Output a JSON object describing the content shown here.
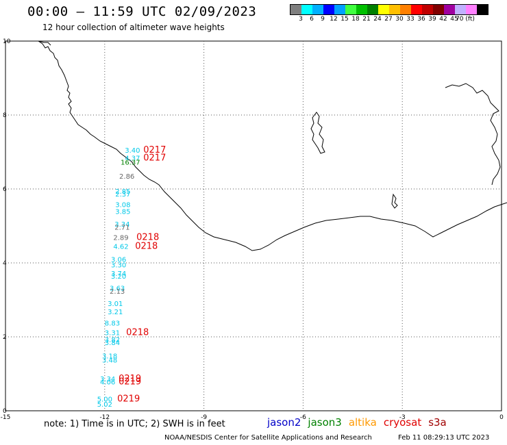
{
  "header": {
    "title": "00:00 – 11:59 UTC 02/09/2023",
    "subtitle": "12 hour collection of altimeter wave heights"
  },
  "colorbar": {
    "colors": [
      "#7f7f7f",
      "#00ffff",
      "#00b0ff",
      "#0000ff",
      "#00a0ff",
      "#40ff40",
      "#00c000",
      "#008000",
      "#ffff00",
      "#ffbf00",
      "#ff8000",
      "#ff0000",
      "#c00000",
      "#800000",
      "#a000a0",
      "#c0b0ff",
      "#ff80ff",
      "#000000"
    ],
    "labels": [
      "3",
      "6",
      "9",
      "12",
      "15",
      "18",
      "21",
      "24",
      "27",
      "30",
      "33",
      "36",
      "39",
      "42",
      "45",
      "70 (ft)"
    ]
  },
  "axes": {
    "x_ticks": [
      "-15",
      "-12",
      "-9",
      "-6",
      "-3",
      "0"
    ],
    "y_ticks": [
      "10",
      "8",
      "6",
      "4",
      "2",
      "0"
    ]
  },
  "observations": [
    {
      "text": "3.40",
      "color": "#00c8e8",
      "lon": -11.39,
      "lat": 6.98
    },
    {
      "text": "4.37",
      "color": "#00c8e8",
      "lon": -11.39,
      "lat": 6.77
    },
    {
      "text": "16.37",
      "color": "#008000",
      "lon": -11.52,
      "lat": 6.66
    },
    {
      "text": "2.86",
      "color": "#666666",
      "lon": -11.56,
      "lat": 6.28
    },
    {
      "text": "2.85",
      "color": "#00c8e8",
      "lon": -11.68,
      "lat": 5.87
    },
    {
      "text": "2.37",
      "color": "#00c8e8",
      "lon": -11.68,
      "lat": 5.8
    },
    {
      "text": "3.08",
      "color": "#00c8e8",
      "lon": -11.68,
      "lat": 5.51
    },
    {
      "text": "3.85",
      "color": "#00c8e8",
      "lon": -11.68,
      "lat": 5.32
    },
    {
      "text": "3.34",
      "color": "#00c8e8",
      "lon": -11.7,
      "lat": 4.98
    },
    {
      "text": "2.71",
      "color": "#666666",
      "lon": -11.7,
      "lat": 4.9
    },
    {
      "text": "2.89",
      "color": "#666666",
      "lon": -11.74,
      "lat": 4.62
    },
    {
      "text": "4.62",
      "color": "#00c8e8",
      "lon": -11.74,
      "lat": 4.38
    },
    {
      "text": "3.06",
      "color": "#00c8e8",
      "lon": -11.81,
      "lat": 4.03
    },
    {
      "text": "3.30",
      "color": "#00c8e8",
      "lon": -11.81,
      "lat": 3.88
    },
    {
      "text": "3.74",
      "color": "#00c8e8",
      "lon": -11.81,
      "lat": 3.65
    },
    {
      "text": "3.20",
      "color": "#00c8e8",
      "lon": -11.81,
      "lat": 3.57
    },
    {
      "text": "3.63",
      "color": "#00c8e8",
      "lon": -11.85,
      "lat": 3.25
    },
    {
      "text": "2.13",
      "color": "#666666",
      "lon": -11.85,
      "lat": 3.17
    },
    {
      "text": "3.01",
      "color": "#00c8e8",
      "lon": -11.91,
      "lat": 2.83
    },
    {
      "text": "3.21",
      "color": "#00c8e8",
      "lon": -11.91,
      "lat": 2.61
    },
    {
      "text": "8.83",
      "color": "#00c8e8",
      "lon": -12.0,
      "lat": 2.31
    },
    {
      "text": "3.31",
      "color": "#00c8e8",
      "lon": -12.0,
      "lat": 2.05
    },
    {
      "text": "3.82",
      "color": "#00c8e8",
      "lon": -12.0,
      "lat": 1.86
    },
    {
      "text": "3.84",
      "color": "#00c8e8",
      "lon": -12.0,
      "lat": 1.78
    },
    {
      "text": "3.18",
      "color": "#00c8e8",
      "lon": -12.08,
      "lat": 1.42
    },
    {
      "text": "3.48",
      "color": "#00c8e8",
      "lon": -12.08,
      "lat": 1.31
    },
    {
      "text": "3.34",
      "color": "#00c8e8",
      "lon": -12.14,
      "lat": 0.8
    },
    {
      "text": "4.06",
      "color": "#00c8e8",
      "lon": -12.14,
      "lat": 0.71
    },
    {
      "text": "5.00",
      "color": "#00c8e8",
      "lon": -12.23,
      "lat": 0.25
    },
    {
      "text": "5.02",
      "color": "#00c8e8",
      "lon": -12.23,
      "lat": 0.11
    }
  ],
  "time_labels": [
    {
      "text": "0217",
      "lon": -10.83,
      "lat": 6.98
    },
    {
      "text": "0217",
      "lon": -10.83,
      "lat": 6.77
    },
    {
      "text": "0218",
      "lon": -11.04,
      "lat": 4.62
    },
    {
      "text": "0218",
      "lon": -11.08,
      "lat": 4.38
    },
    {
      "text": "0218",
      "lon": -11.35,
      "lat": 2.05
    },
    {
      "text": "0219",
      "lon": -11.58,
      "lat": 0.8
    },
    {
      "text": "0219",
      "lon": -11.58,
      "lat": 0.71
    },
    {
      "text": "0219",
      "lon": -11.62,
      "lat": 0.25
    }
  ],
  "time_label_color": "#e00000",
  "footer": {
    "note": "note:  1) Time is in UTC; 2) SWH is in feet",
    "legend": [
      {
        "name": "jason2",
        "color": "#0000c8"
      },
      {
        "name": "jason3",
        "color": "#008000"
      },
      {
        "name": "altika",
        "color": "#ff9900"
      },
      {
        "name": "cryosat",
        "color": "#e00000"
      },
      {
        "name": "s3a",
        "color": "#a00000"
      }
    ],
    "credit": "NOAA/NESDIS Center for Satellite Applications and Research",
    "timestamp": "Feb 11 08:29:13 UTC 2023"
  }
}
